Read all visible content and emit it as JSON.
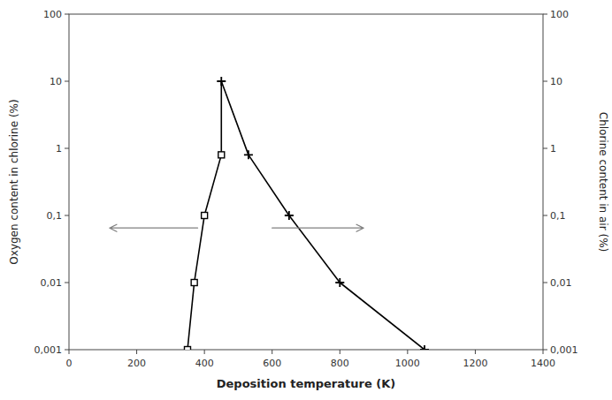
{
  "chart_data": {
    "type": "line",
    "log": "y",
    "grid": false,
    "xlabel": "Deposition temperature (K)",
    "ylabel": "Oxygen content in chlorine (%)",
    "y2label": "Chlorine content in air (%)",
    "xlim": [
      0,
      1400
    ],
    "xticks": [
      0,
      200,
      400,
      600,
      800,
      1000,
      1200,
      1400
    ],
    "ylim": [
      0.001,
      100
    ],
    "yticks": [
      {
        "value": 0.001,
        "label": "0,001"
      },
      {
        "value": 0.01,
        "label": "0,01"
      },
      {
        "value": 0.1,
        "label": "0,1"
      },
      1,
      10,
      100
    ],
    "y2lim": [
      0.001,
      100
    ],
    "y2ticks": [
      {
        "value": 0.001,
        "label": "0,001"
      },
      {
        "value": 0.01,
        "label": "0,01"
      },
      {
        "value": 0.1,
        "label": "0,1"
      },
      1,
      10,
      100
    ],
    "series": [
      {
        "type": "line",
        "color": "#000000",
        "x": [
          350,
          370,
          400,
          450,
          450,
          530,
          650,
          800,
          1050
        ],
        "values": [
          0.001,
          0.01,
          0.1,
          0.8,
          10,
          0.8,
          0.1,
          0.01,
          0.001
        ]
      },
      {
        "type": "scatter",
        "marker": "square",
        "color": "#000000",
        "x": [
          350,
          370,
          400,
          450
        ],
        "values": [
          0.001,
          0.01,
          0.1,
          0.8
        ]
      },
      {
        "type": "scatter",
        "marker": "plus",
        "color": "#000000",
        "x": [
          450,
          530,
          650,
          800,
          1050
        ],
        "values": [
          10,
          0.8,
          0.1,
          0.01,
          0.001
        ]
      }
    ],
    "arrows": [
      {
        "from": 380,
        "to": 120,
        "y": 0.065,
        "color": "#808080"
      },
      {
        "from": 600,
        "to": 870,
        "y": 0.065,
        "color": "#808080"
      }
    ]
  }
}
